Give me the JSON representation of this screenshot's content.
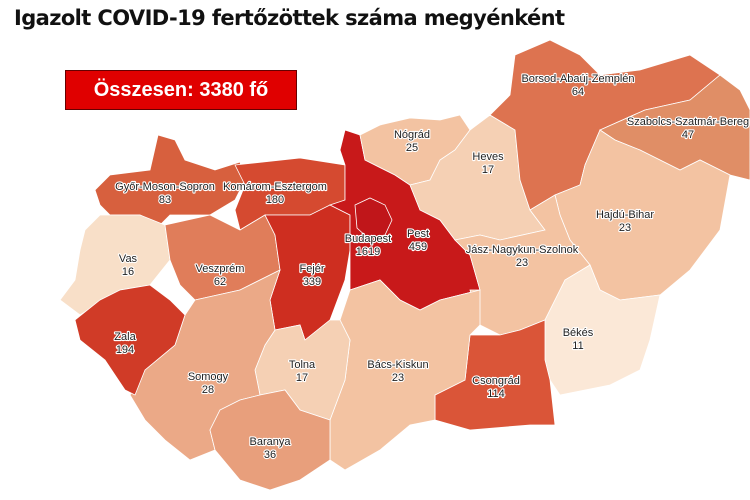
{
  "title": "Igazolt COVID-19 fertőzöttek száma megyénként",
  "total_label": "Összesen: 3380 fő",
  "colors": {
    "total_box": "#e00000"
  },
  "counties": [
    {
      "name": "Győr-Moson-Sopron",
      "value": "83",
      "color": "#d7603e"
    },
    {
      "name": "Komárom-Esztergom",
      "value": "180",
      "color": "#d54a30"
    },
    {
      "name": "Vas",
      "value": "16",
      "color": "#f8dfc8"
    },
    {
      "name": "Veszprém",
      "value": "62",
      "color": "#e07d5a"
    },
    {
      "name": "Fejér",
      "value": "339",
      "color": "#ce2e20"
    },
    {
      "name": "Pest",
      "value": "459",
      "color": "#c8191a"
    },
    {
      "name": "Budapest",
      "value": "1619",
      "color": "#c0161a"
    },
    {
      "name": "Nógrád",
      "value": "25",
      "color": "#f3c3a2"
    },
    {
      "name": "Heves",
      "value": "17",
      "color": "#f5d0b4"
    },
    {
      "name": "Borsod-Abaúj-Zemplén",
      "value": "64",
      "color": "#dd7350"
    },
    {
      "name": "Szabolcs-Szatmár-Bereg",
      "value": "47",
      "color": "#e08e66"
    },
    {
      "name": "Hajdú-Bihar",
      "value": "23",
      "color": "#f3c3a2"
    },
    {
      "name": "Jász-Nagykun-Szolnok",
      "value": "23",
      "color": "#f3c3a2"
    },
    {
      "name": "Békés",
      "value": "11",
      "color": "#fbe8d7"
    },
    {
      "name": "Csongrád",
      "value": "114",
      "color": "#da5538"
    },
    {
      "name": "Bács-Kiskun",
      "value": "23",
      "color": "#f3c3a2"
    },
    {
      "name": "Tolna",
      "value": "17",
      "color": "#f5d0b4"
    },
    {
      "name": "Somogy",
      "value": "28",
      "color": "#eba987"
    },
    {
      "name": "Zala",
      "value": "194",
      "color": "#d03b27"
    },
    {
      "name": "Baranya",
      "value": "36",
      "color": "#e89f7c"
    }
  ]
}
